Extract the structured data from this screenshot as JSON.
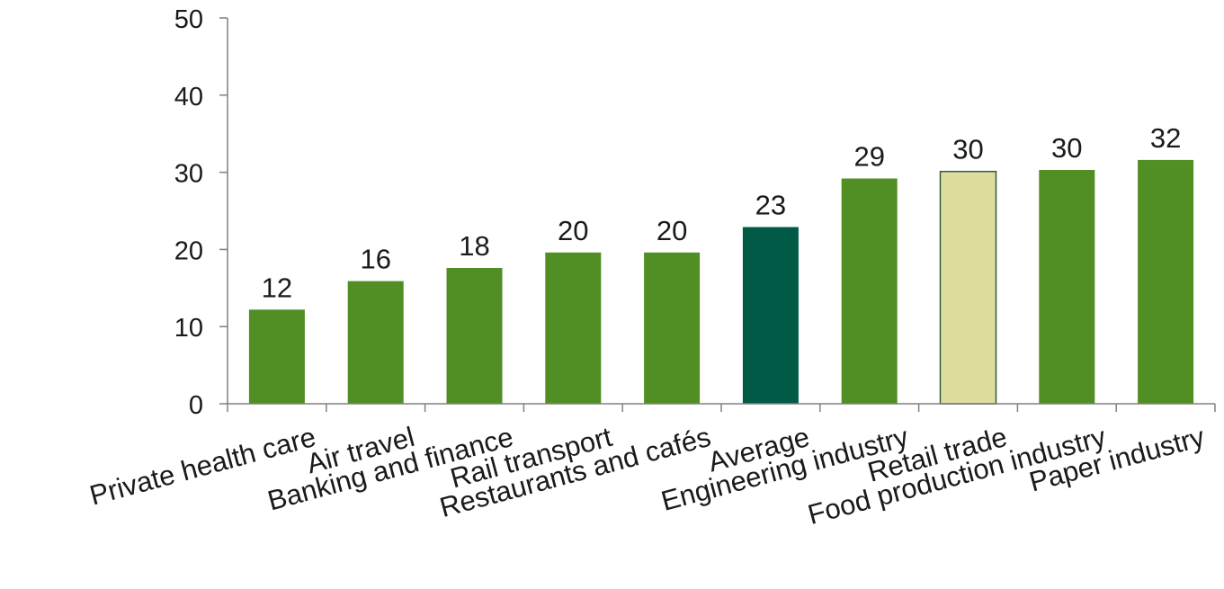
{
  "chart_data": {
    "type": "bar",
    "categories": [
      "Private health care",
      "Air travel",
      "Banking and finance",
      "Rail transport",
      "Restaurants and cafés",
      "Average",
      "Engineering industry",
      "Retail trade",
      "Food production industry",
      "Paper industry"
    ],
    "values": [
      12.2,
      15.9,
      17.6,
      19.6,
      19.6,
      22.9,
      29.2,
      30.1,
      30.3,
      31.6
    ],
    "data_labels": [
      "12",
      "16",
      "18",
      "20",
      "20",
      "23",
      "29",
      "30",
      "30",
      "32"
    ],
    "bar_colors": [
      "#518e23",
      "#518e23",
      "#518e23",
      "#518e23",
      "#518e23",
      "#005a45",
      "#518e23",
      "#dedd9f",
      "#518e23",
      "#518e23"
    ],
    "highlight_border": "#2f5f3f",
    "ylim": [
      0,
      50
    ],
    "yticks": [
      0,
      10,
      20,
      30,
      40,
      50
    ],
    "ytick_labels": [
      "0",
      "10",
      "20",
      "30",
      "40",
      "50"
    ],
    "title": "",
    "xlabel": "",
    "ylabel": "",
    "grid": false,
    "axis_color": "#808080"
  }
}
